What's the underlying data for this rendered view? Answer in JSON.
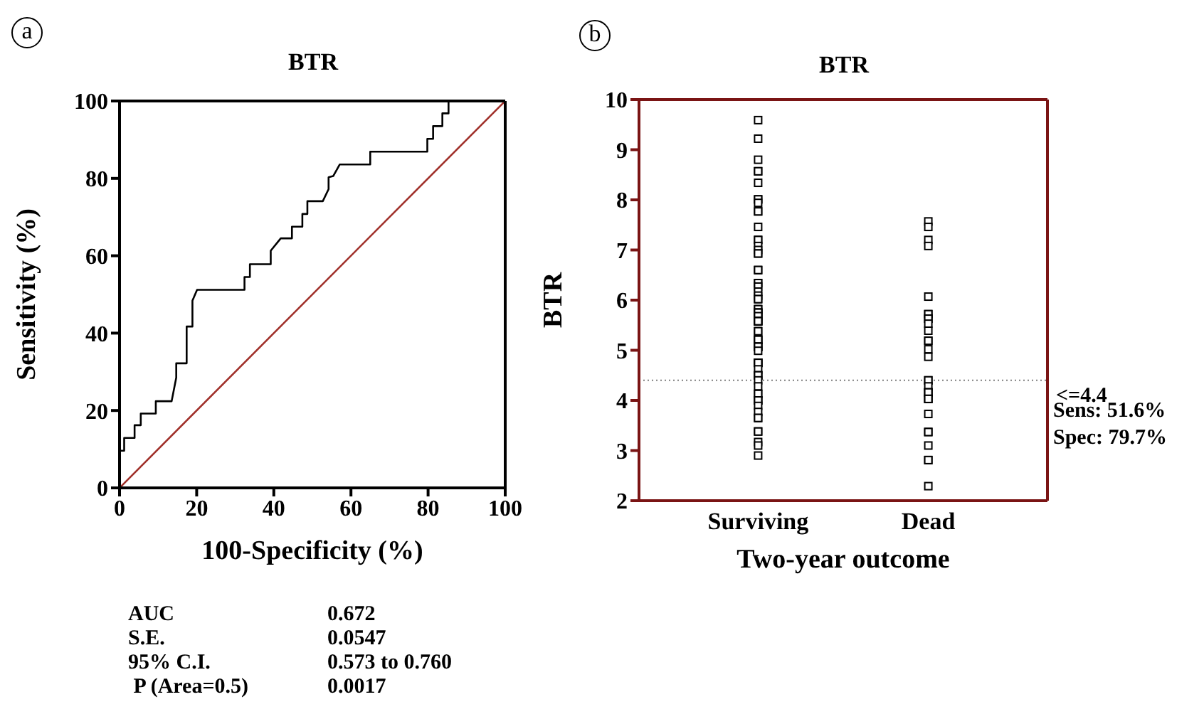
{
  "chart_data": [
    {
      "type": "line",
      "title": "BTR",
      "xlabel": "100-Specificity (%)",
      "ylabel": "Sensitivity  (%)",
      "xlim": [
        0,
        100
      ],
      "ylim": [
        0,
        100
      ],
      "xticks": [
        0,
        20,
        40,
        60,
        80,
        100
      ],
      "yticks": [
        0,
        20,
        40,
        60,
        80,
        100
      ],
      "marker": "none",
      "annotations": [
        "a",
        "AUC",
        "0.672",
        "S.E.",
        "0.0547",
        "95% C.I.",
        "0.573 to 0.760",
        " P (Area=0.5)",
        "0.0017"
      ],
      "series": [
        {
          "color": "#000000",
          "x": [
            0,
            0,
            1.2,
            1.2,
            3.9,
            3.9,
            5.5,
            5.5,
            9.4,
            9.4,
            13.5,
            14.7,
            14.7,
            17.4,
            17.4,
            18.9,
            18.9,
            20.1,
            32.4,
            32.4,
            33.8,
            33.8,
            39.2,
            39.2,
            41.8,
            44.7,
            44.7,
            47.4,
            47.4,
            48.7,
            48.7,
            52.7,
            54.2,
            54.2,
            55.4,
            57.1,
            65.0,
            65.0,
            79.8,
            79.8,
            81.3,
            81.3,
            83.7,
            83.7,
            85.3,
            85.3,
            100
          ],
          "values": [
            0,
            9.6,
            9.6,
            12.9,
            12.9,
            16.2,
            16.2,
            19.2,
            19.2,
            22.4,
            22.4,
            28.5,
            32.2,
            32.2,
            41.7,
            41.7,
            48.4,
            51.2,
            51.2,
            54.5,
            54.5,
            57.8,
            57.8,
            61.3,
            64.5,
            64.5,
            67.5,
            67.5,
            70.8,
            70.8,
            74.1,
            74.1,
            77.2,
            80.3,
            80.6,
            83.6,
            83.6,
            86.9,
            86.9,
            90.2,
            90.2,
            93.5,
            93.5,
            96.8,
            96.8,
            100,
            100
          ]
        },
        {
          "color": "#a0302a",
          "x": [
            0,
            100
          ],
          "values": [
            0,
            100
          ]
        }
      ]
    },
    {
      "type": "scatter",
      "title": "BTR",
      "xlabel": "Two-year outcome",
      "ylabel": "BTR",
      "categories": [
        "Surviving",
        "Dead"
      ],
      "ylim": [
        2,
        10
      ],
      "yticks": [
        2,
        3,
        4,
        5,
        6,
        7,
        8,
        9,
        10
      ],
      "marker": "square",
      "ref_lines": [
        {
          "axis": "y",
          "value": 4.4,
          "label": "<=4.4",
          "color": "#808080",
          "line_style": "dotted"
        }
      ],
      "annotations": [
        "b",
        "Sens: 51.6%",
        "Spec: 79.7%"
      ],
      "series": [
        {
          "color": "#000000",
          "x": [
            "Surviving",
            "Surviving",
            "Surviving",
            "Surviving",
            "Surviving",
            "Surviving",
            "Surviving",
            "Surviving",
            "Surviving",
            "Surviving",
            "Surviving",
            "Surviving",
            "Surviving",
            "Surviving",
            "Surviving",
            "Surviving",
            "Surviving",
            "Surviving",
            "Surviving",
            "Surviving",
            "Surviving",
            "Surviving",
            "Surviving",
            "Surviving",
            "Surviving",
            "Surviving",
            "Surviving",
            "Surviving",
            "Surviving",
            "Surviving",
            "Surviving",
            "Surviving",
            "Surviving",
            "Surviving",
            "Surviving",
            "Surviving",
            "Surviving",
            "Surviving",
            "Surviving",
            "Surviving",
            "Surviving",
            "Surviving",
            "Surviving",
            "Surviving",
            "Surviving",
            "Surviving",
            "Surviving",
            "Surviving",
            "Surviving",
            "Surviving",
            "Surviving",
            "Surviving",
            "Surviving",
            "Surviving",
            "Surviving",
            "Surviving",
            "Surviving",
            "Surviving",
            "Surviving",
            "Surviving",
            "Surviving",
            "Surviving",
            "Surviving",
            "Surviving",
            "Surviving",
            "Surviving",
            "Surviving",
            "Surviving",
            "Surviving",
            "Surviving",
            "Surviving",
            "Surviving",
            "Surviving",
            "Surviving",
            "Surviving",
            "Dead",
            "Dead",
            "Dead",
            "Dead",
            "Dead",
            "Dead",
            "Dead",
            "Dead",
            "Dead",
            "Dead",
            "Dead",
            "Dead",
            "Dead",
            "Dead",
            "Dead",
            "Dead",
            "Dead",
            "Dead",
            "Dead",
            "Dead",
            "Dead",
            "Dead",
            "Dead",
            "Dead",
            "Dead",
            "Dead",
            "Dead",
            "Dead",
            "Dead",
            "Dead",
            "Dead"
          ],
          "values": [
            9.59,
            9.22,
            8.8,
            8.57,
            8.57,
            8.34,
            8.01,
            8.01,
            7.94,
            7.77,
            7.77,
            7.46,
            7.2,
            7.2,
            7.08,
            7.0,
            6.93,
            6.93,
            6.6,
            6.6,
            6.34,
            6.34,
            6.27,
            6.17,
            6.09,
            6.02,
            6.02,
            5.82,
            5.82,
            5.75,
            5.75,
            5.75,
            5.75,
            5.68,
            5.58,
            5.58,
            5.58,
            5.58,
            5.58,
            5.38,
            5.38,
            5.21,
            5.21,
            5.21,
            5.21,
            5.07,
            5.07,
            5.07,
            5.07,
            4.99,
            4.75,
            4.75,
            4.75,
            4.75,
            4.75,
            4.62,
            4.5,
            4.5,
            4.5,
            4.4,
            4.28,
            4.13,
            4.13,
            4.0,
            4.0,
            4.0,
            3.89,
            3.77,
            3.65,
            3.65,
            3.38,
            3.38,
            3.17,
            3.1,
            2.9,
            7.57,
            7.46,
            7.2,
            7.08,
            6.07,
            5.72,
            5.72,
            5.63,
            5.63,
            5.53,
            5.39,
            5.19,
            5.19,
            5.02,
            4.87,
            4.4,
            4.4,
            4.28,
            4.16,
            4.16,
            4.16,
            4.03,
            4.03,
            4.03,
            3.73,
            3.37,
            3.37,
            3.1,
            2.81,
            2.81,
            2.29
          ]
        }
      ]
    }
  ]
}
